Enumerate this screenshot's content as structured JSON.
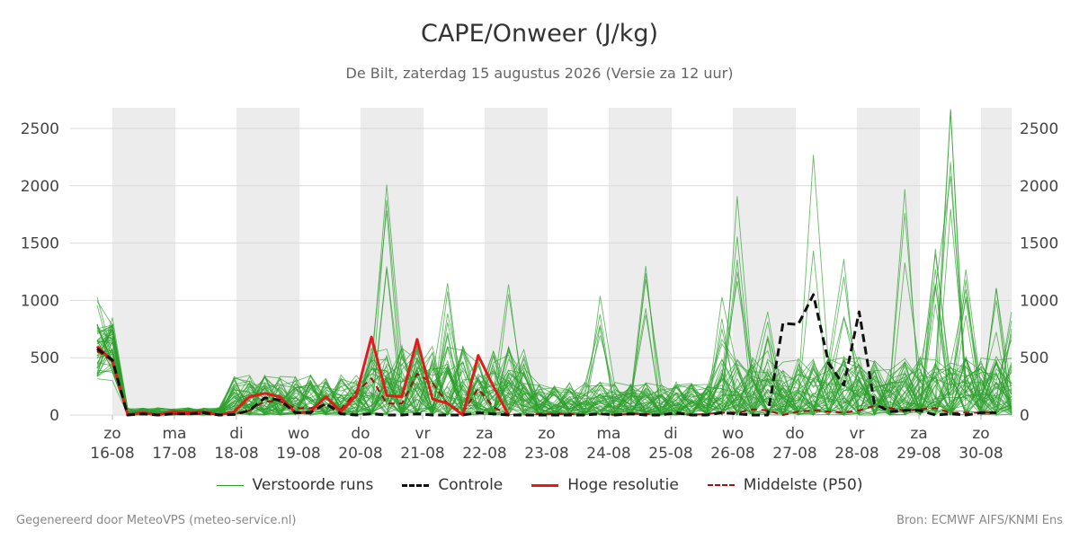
{
  "page": {
    "title": "CAPE/Onweer (J/kg)",
    "subtitle": "De Bilt, zaterdag 15 augustus 2026 (Versie za 12 uur)",
    "footer_left": "Gegenereerd door MeteoVPS (meteo-service.nl)",
    "footer_right": "Bron: ECMWF AIFS/KNMI Ens"
  },
  "legend": [
    {
      "label": "Verstoorde runs",
      "color": "#2ca02c",
      "style": "thin"
    },
    {
      "label": "Controle",
      "color": "#111111",
      "style": "dashed"
    },
    {
      "label": "Hoge resolutie",
      "color": "#e31a1c",
      "style": "solid"
    },
    {
      "label": "Middelste (P50)",
      "color": "#a50f15",
      "style": "dashed"
    }
  ],
  "chart_data": {
    "type": "line",
    "x_unit": "time step (6 h)",
    "x_ticks": [
      {
        "day": "zo",
        "date": "16-08"
      },
      {
        "day": "ma",
        "date": "17-08"
      },
      {
        "day": "di",
        "date": "18-08"
      },
      {
        "day": "wo",
        "date": "19-08"
      },
      {
        "day": "do",
        "date": "20-08"
      },
      {
        "day": "vr",
        "date": "21-08"
      },
      {
        "day": "za",
        "date": "22-08"
      },
      {
        "day": "zo",
        "date": "23-08"
      },
      {
        "day": "ma",
        "date": "24-08"
      },
      {
        "day": "di",
        "date": "25-08"
      },
      {
        "day": "wo",
        "date": "26-08"
      },
      {
        "day": "do",
        "date": "27-08"
      },
      {
        "day": "vr",
        "date": "28-08"
      },
      {
        "day": "za",
        "date": "29-08"
      },
      {
        "day": "zo",
        "date": "30-08"
      }
    ],
    "y_ticks": [
      0,
      500,
      1000,
      1500,
      2000,
      2500
    ],
    "ylim": [
      0,
      2680
    ],
    "grid": true,
    "legend_position": "bottom",
    "series": [
      {
        "name": "Hoge resolutie",
        "color": "#e31a1c",
        "values": [
          600,
          470,
          5,
          20,
          0,
          30,
          20,
          30,
          0,
          30,
          160,
          190,
          160,
          20,
          30,
          160,
          30,
          170,
          680,
          170,
          160,
          660,
          140,
          100,
          0,
          520,
          250,
          0
        ]
      },
      {
        "name": "Controle",
        "color": "#111111",
        "values": [
          580,
          480,
          0,
          10,
          0,
          10,
          10,
          20,
          0,
          5,
          40,
          150,
          130,
          20,
          20,
          100,
          10,
          0,
          10,
          0,
          0,
          10,
          0,
          0,
          0,
          20,
          10,
          0,
          0,
          0,
          0,
          0,
          0,
          10,
          0,
          10,
          0,
          0,
          20,
          0,
          0,
          20,
          10,
          0,
          0,
          800,
          790,
          1050,
          450,
          260,
          900,
          100,
          30,
          40,
          40,
          0,
          10,
          0,
          20,
          20
        ]
      },
      {
        "name": "Middelste (P50)",
        "color": "#a50f15",
        "values": [
          560,
          470,
          10,
          10,
          0,
          10,
          10,
          10,
          0,
          10,
          40,
          120,
          120,
          60,
          60,
          90,
          50,
          200,
          320,
          100,
          100,
          360,
          280,
          100,
          20,
          230,
          70,
          0,
          0,
          10,
          10,
          10,
          0,
          10,
          0,
          10,
          10,
          0,
          10,
          0,
          10,
          20,
          20,
          50,
          40,
          0,
          30,
          40,
          30,
          20,
          40,
          80,
          60,
          40,
          50,
          60,
          20,
          20,
          20,
          20
        ]
      }
    ],
    "ensemble_name": "Verstoorde runs",
    "ensemble_color": "#2ca02c",
    "ensemble_peaks": [
      {
        "step": 0,
        "value": 1030
      },
      {
        "step": 1,
        "value": 850
      },
      {
        "step": 19,
        "value": 2010
      },
      {
        "step": 23,
        "value": 1150
      },
      {
        "step": 27,
        "value": 1140
      },
      {
        "step": 33,
        "value": 1040
      },
      {
        "step": 36,
        "value": 1300
      },
      {
        "step": 41,
        "value": 1030
      },
      {
        "step": 42,
        "value": 1910
      },
      {
        "step": 44,
        "value": 900
      },
      {
        "step": 47,
        "value": 2270
      },
      {
        "step": 49,
        "value": 1360
      },
      {
        "step": 53,
        "value": 1970
      },
      {
        "step": 55,
        "value": 1450
      },
      {
        "step": 56,
        "value": 2670
      },
      {
        "step": 57,
        "value": 1270
      },
      {
        "step": 59,
        "value": 1110
      },
      {
        "step": 60,
        "value": 900
      }
    ]
  }
}
